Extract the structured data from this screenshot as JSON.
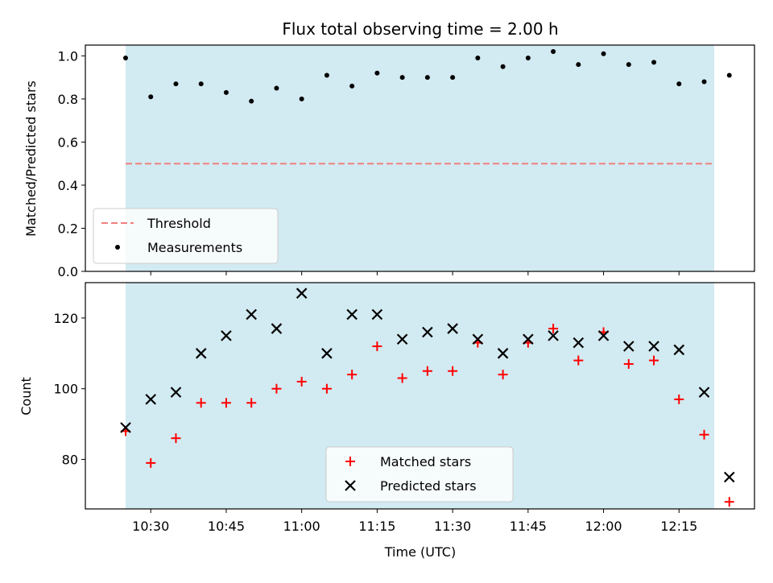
{
  "title": "Flux total observing time = 2.00 h",
  "colors": {
    "observing_span": "#add8e6",
    "threshold": "#f08080",
    "measurement": "#000000",
    "matched": "#ff0000",
    "predicted": "#000000"
  },
  "chart_data": [
    {
      "type": "scatter",
      "panel": "top",
      "ylabel": "Matched/Predicted stars",
      "ylim": [
        0,
        1.05
      ],
      "yticks": [
        0,
        0.2,
        0.4,
        0.6,
        0.8,
        1.0
      ],
      "ytick_labels": [
        "0.0",
        "0.2",
        "0.4",
        "0.6",
        "0.8",
        "1.0"
      ],
      "observing_span": [
        "10:25",
        "12:22"
      ],
      "threshold": 0.5,
      "legend": {
        "placement": "lower-left",
        "entries": [
          "Threshold",
          "Measurements"
        ]
      },
      "series": [
        {
          "name": "Measurements",
          "marker": "dot",
          "x": [
            "10:25",
            "10:30",
            "10:35",
            "10:40",
            "10:45",
            "10:50",
            "10:55",
            "11:00",
            "11:05",
            "11:10",
            "11:15",
            "11:20",
            "11:25",
            "11:30",
            "11:35",
            "11:40",
            "11:45",
            "11:50",
            "11:55",
            "12:00",
            "12:05",
            "12:10",
            "12:15",
            "12:20",
            "12:25"
          ],
          "y": [
            0.99,
            0.81,
            0.87,
            0.87,
            0.83,
            0.79,
            0.85,
            0.8,
            0.91,
            0.86,
            0.92,
            0.9,
            0.9,
            0.9,
            0.99,
            0.95,
            0.99,
            1.02,
            0.96,
            1.01,
            0.96,
            0.97,
            0.87,
            0.88,
            0.91
          ]
        }
      ]
    },
    {
      "type": "scatter",
      "panel": "bottom",
      "ylabel": "Count",
      "xlabel": "Time (UTC)",
      "ylim": [
        66,
        130
      ],
      "yticks": [
        80,
        100,
        120
      ],
      "ytick_labels": [
        "80",
        "100",
        "120"
      ],
      "xticks": [
        "10:30",
        "10:45",
        "11:00",
        "11:15",
        "11:30",
        "11:45",
        "12:00",
        "12:15"
      ],
      "observing_span": [
        "10:25",
        "12:22"
      ],
      "legend": {
        "placement": "lower-center",
        "entries": [
          "Matched stars",
          "Predicted stars"
        ]
      },
      "series": [
        {
          "name": "Matched stars",
          "marker": "plus",
          "x": [
            "10:25",
            "10:30",
            "10:35",
            "10:40",
            "10:45",
            "10:50",
            "10:55",
            "11:00",
            "11:05",
            "11:10",
            "11:15",
            "11:20",
            "11:25",
            "11:30",
            "11:35",
            "11:40",
            "11:45",
            "11:50",
            "11:55",
            "12:00",
            "12:05",
            "12:10",
            "12:15",
            "12:20",
            "12:25"
          ],
          "y": [
            88,
            79,
            86,
            96,
            96,
            96,
            100,
            102,
            100,
            104,
            112,
            103,
            105,
            105,
            113,
            104,
            113,
            117,
            108,
            116,
            107,
            108,
            97,
            87,
            68
          ]
        },
        {
          "name": "Predicted stars",
          "marker": "x",
          "x": [
            "10:25",
            "10:30",
            "10:35",
            "10:40",
            "10:45",
            "10:50",
            "10:55",
            "11:00",
            "11:05",
            "11:10",
            "11:15",
            "11:20",
            "11:25",
            "11:30",
            "11:35",
            "11:40",
            "11:45",
            "11:50",
            "11:55",
            "12:00",
            "12:05",
            "12:10",
            "12:15",
            "12:20",
            "12:25"
          ],
          "y": [
            89,
            97,
            99,
            110,
            115,
            121,
            117,
            127,
            110,
            121,
            121,
            114,
            116,
            117,
            114,
            110,
            114,
            115,
            113,
            115,
            112,
            112,
            111,
            99,
            75
          ]
        }
      ]
    }
  ]
}
